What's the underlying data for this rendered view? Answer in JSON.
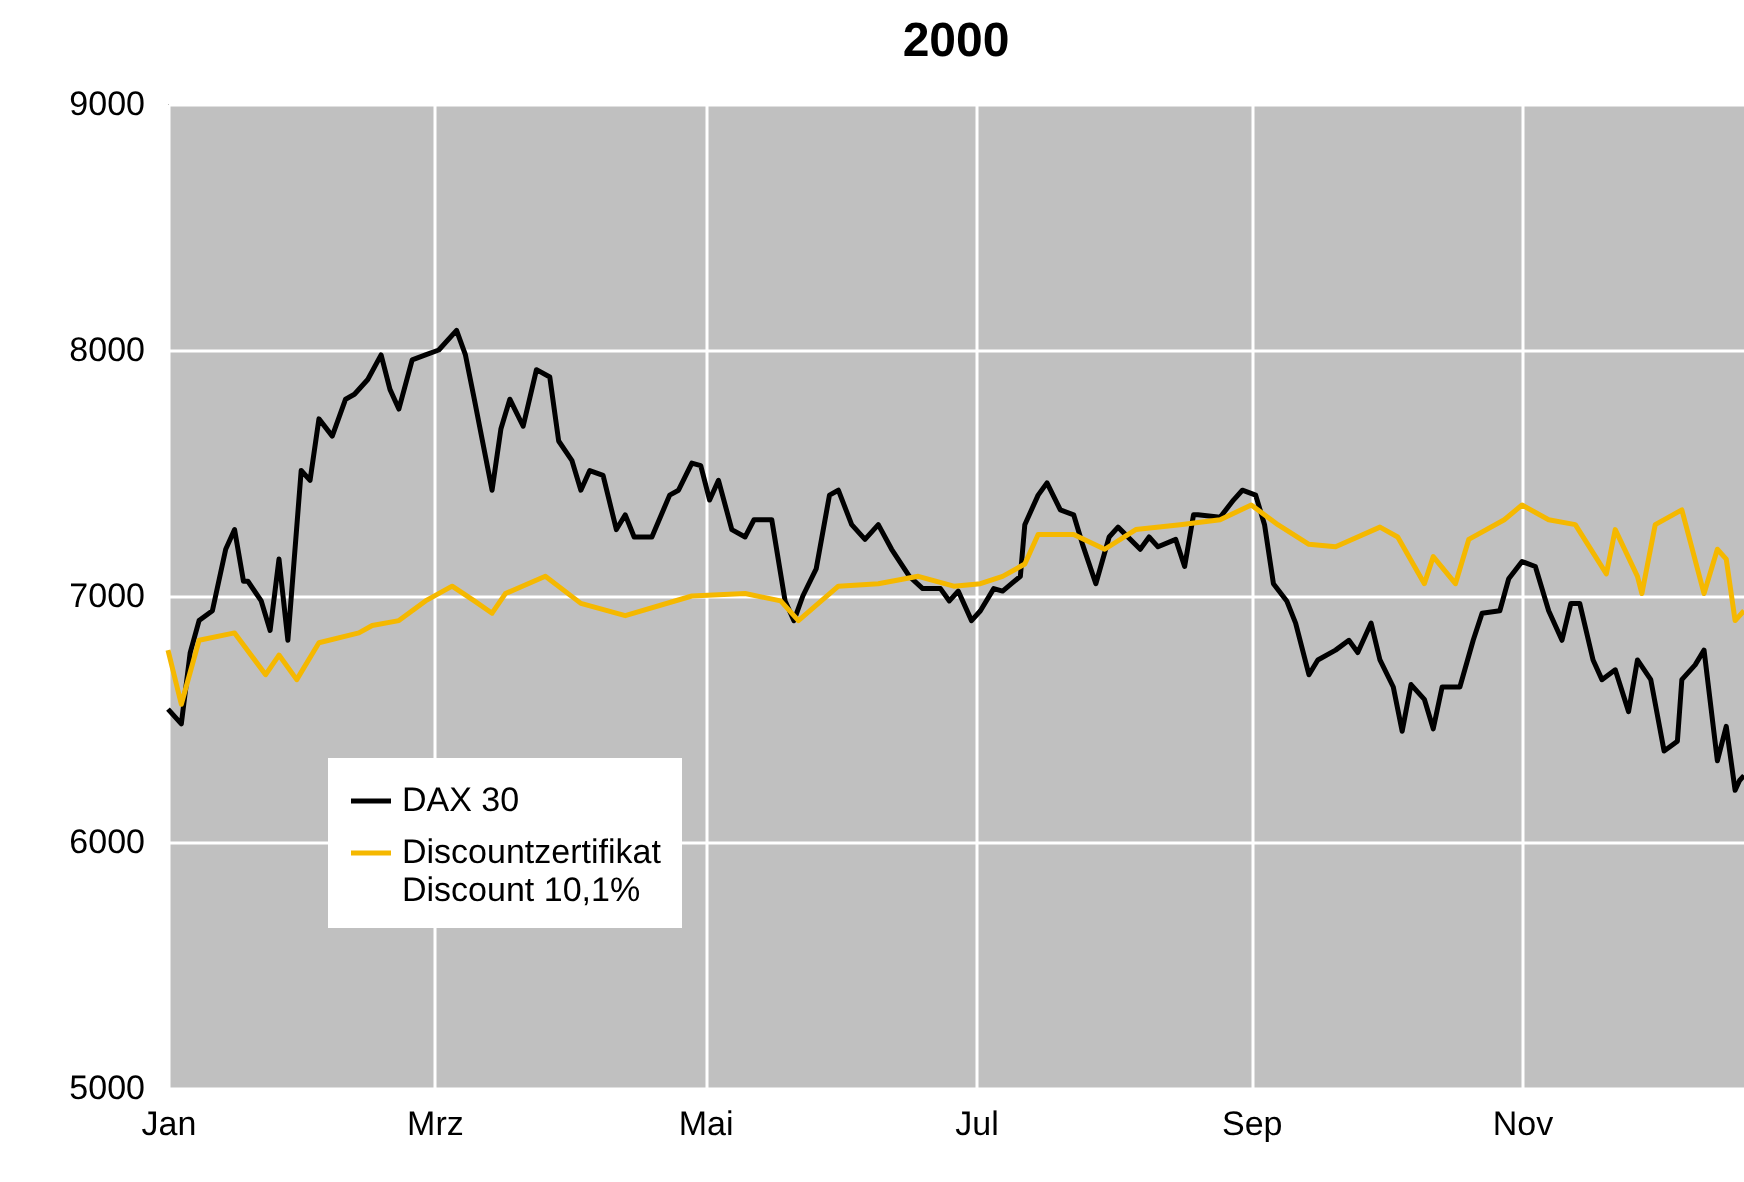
{
  "chart_data": {
    "type": "line",
    "title": "2000",
    "xlim": [
      "2000-01-01",
      "2000-12-21"
    ],
    "xticks": [
      {
        "value": "2000-01-01",
        "label": "Jan"
      },
      {
        "value": "2000-03-01",
        "label": "Mrz"
      },
      {
        "value": "2000-05-01",
        "label": "Mai"
      },
      {
        "value": "2000-07-01",
        "label": "Jul"
      },
      {
        "value": "2000-09-01",
        "label": "Sep"
      },
      {
        "value": "2000-11-01",
        "label": "Nov"
      }
    ],
    "ylim": [
      5000,
      9000
    ],
    "yticks": [
      5000,
      6000,
      7000,
      8000,
      9000
    ],
    "grid": true,
    "legend": "bottom left",
    "line_style": "solid",
    "marker": "none",
    "series": [
      {
        "name": "DAX 30",
        "color": "#000000",
        "x": [
          "2000-01-01",
          "2000-01-04",
          "2000-01-06",
          "2000-01-08",
          "2000-01-11",
          "2000-01-14",
          "2000-01-16",
          "2000-01-18",
          "2000-01-19",
          "2000-01-22",
          "2000-01-24",
          "2000-01-26",
          "2000-01-28",
          "2000-01-31",
          "2000-02-02",
          "2000-02-04",
          "2000-02-07",
          "2000-02-10",
          "2000-02-12",
          "2000-02-15",
          "2000-02-18",
          "2000-02-20",
          "2000-02-22",
          "2000-02-25",
          "2000-02-28",
          "2000-03-02",
          "2000-03-06",
          "2000-03-08",
          "2000-03-10",
          "2000-03-14",
          "2000-03-16",
          "2000-03-18",
          "2000-03-21",
          "2000-03-24",
          "2000-03-27",
          "2000-03-29",
          "2000-04-01",
          "2000-04-03",
          "2000-04-05",
          "2000-04-08",
          "2000-04-11",
          "2000-04-13",
          "2000-04-15",
          "2000-04-19",
          "2000-04-23",
          "2000-04-25",
          "2000-04-28",
          "2000-04-30",
          "2000-05-02",
          "2000-05-04",
          "2000-05-07",
          "2000-05-10",
          "2000-05-12",
          "2000-05-16",
          "2000-05-19",
          "2000-05-21",
          "2000-05-23",
          "2000-05-26",
          "2000-05-29",
          "2000-05-31",
          "2000-06-03",
          "2000-06-06",
          "2000-06-09",
          "2000-06-12",
          "2000-06-16",
          "2000-06-19",
          "2000-06-23",
          "2000-06-25",
          "2000-06-27",
          "2000-06-30",
          "2000-07-02",
          "2000-07-05",
          "2000-07-07",
          "2000-07-09",
          "2000-07-11",
          "2000-07-12",
          "2000-07-15",
          "2000-07-17",
          "2000-07-20",
          "2000-07-23",
          "2000-07-25",
          "2000-07-28",
          "2000-07-31",
          "2000-08-02",
          "2000-08-07",
          "2000-08-09",
          "2000-08-11",
          "2000-08-15",
          "2000-08-17",
          "2000-08-19",
          "2000-08-20",
          "2000-08-25",
          "2000-08-28",
          "2000-08-30",
          "2000-09-02",
          "2000-09-04",
          "2000-09-06",
          "2000-09-09",
          "2000-09-11",
          "2000-09-14",
          "2000-09-16",
          "2000-09-20",
          "2000-09-23",
          "2000-09-25",
          "2000-09-28",
          "2000-09-30",
          "2000-10-03",
          "2000-10-05",
          "2000-10-07",
          "2000-10-10",
          "2000-10-12",
          "2000-10-14",
          "2000-10-18",
          "2000-10-21",
          "2000-10-23",
          "2000-10-27",
          "2000-10-29",
          "2000-11-01",
          "2000-11-04",
          "2000-11-07",
          "2000-11-10",
          "2000-11-12",
          "2000-11-14",
          "2000-11-17",
          "2000-11-19",
          "2000-11-22",
          "2000-11-25",
          "2000-11-27",
          "2000-11-30",
          "2000-12-03",
          "2000-12-06",
          "2000-12-07",
          "2000-12-10",
          "2000-12-12",
          "2000-12-15",
          "2000-12-17",
          "2000-12-19",
          "2000-12-20",
          "2000-12-21"
        ],
        "values": [
          6540,
          6480,
          6770,
          6900,
          6940,
          7190,
          7270,
          7060,
          7060,
          6980,
          6860,
          7150,
          6820,
          7510,
          7470,
          7720,
          7650,
          7800,
          7820,
          7880,
          7980,
          7840,
          7760,
          7960,
          7980,
          8000,
          8080,
          7980,
          7800,
          7430,
          7680,
          7800,
          7690,
          7920,
          7890,
          7630,
          7550,
          7430,
          7510,
          7490,
          7270,
          7330,
          7240,
          7240,
          7410,
          7430,
          7540,
          7530,
          7390,
          7470,
          7270,
          7240,
          7310,
          7310,
          6980,
          6900,
          7000,
          7110,
          7410,
          7430,
          7290,
          7230,
          7290,
          7190,
          7080,
          7030,
          7030,
          6980,
          7020,
          6900,
          6940,
          7030,
          7020,
          7050,
          7080,
          7290,
          7410,
          7460,
          7350,
          7330,
          7210,
          7050,
          7240,
          7280,
          7190,
          7240,
          7200,
          7230,
          7120,
          7330,
          7330,
          7320,
          7390,
          7430,
          7410,
          7290,
          7050,
          6980,
          6890,
          6680,
          6740,
          6780,
          6820,
          6770,
          6890,
          6740,
          6630,
          6450,
          6640,
          6580,
          6460,
          6630,
          6630,
          6820,
          6930,
          6940,
          7070,
          7140,
          7120,
          6940,
          6820,
          6970,
          6970,
          6740,
          6660,
          6700,
          6530,
          6740,
          6660,
          6370,
          6410,
          6660,
          6720,
          6780,
          6330,
          6470,
          6210,
          6250,
          6270
        ]
      },
      {
        "name": "Discountzertifikat\nDiscount 10,1%",
        "color": "#f5b800",
        "x": [
          "2000-01-01",
          "2000-01-04",
          "2000-01-08",
          "2000-01-16",
          "2000-01-23",
          "2000-01-26",
          "2000-01-30",
          "2000-02-04",
          "2000-02-13",
          "2000-02-16",
          "2000-02-22",
          "2000-02-28",
          "2000-03-05",
          "2000-03-10",
          "2000-03-14",
          "2000-03-17",
          "2000-03-26",
          "2000-04-03",
          "2000-04-13",
          "2000-04-28",
          "2000-05-10",
          "2000-05-18",
          "2000-05-22",
          "2000-05-31",
          "2000-06-09",
          "2000-06-18",
          "2000-06-26",
          "2000-07-02",
          "2000-07-07",
          "2000-07-12",
          "2000-07-15",
          "2000-07-23",
          "2000-07-30",
          "2000-08-06",
          "2000-08-16",
          "2000-08-25",
          "2000-09-01",
          "2000-09-07",
          "2000-09-14",
          "2000-09-20",
          "2000-09-30",
          "2000-10-04",
          "2000-10-10",
          "2000-10-12",
          "2000-10-17",
          "2000-10-20",
          "2000-10-28",
          "2000-11-01",
          "2000-11-07",
          "2000-11-13",
          "2000-11-20",
          "2000-11-22",
          "2000-11-27",
          "2000-11-28",
          "2000-12-01",
          "2000-12-07",
          "2000-12-12",
          "2000-12-15",
          "2000-12-17",
          "2000-12-19",
          "2000-12-21"
        ],
        "values": [
          6780,
          6560,
          6820,
          6850,
          6680,
          6760,
          6660,
          6810,
          6850,
          6880,
          6900,
          6980,
          7040,
          6980,
          6930,
          7010,
          7080,
          6970,
          6920,
          7000,
          7010,
          6980,
          6900,
          7040,
          7050,
          7080,
          7040,
          7050,
          7080,
          7130,
          7250,
          7250,
          7190,
          7270,
          7290,
          7310,
          7370,
          7290,
          7210,
          7200,
          7280,
          7240,
          7050,
          7160,
          7050,
          7230,
          7310,
          7370,
          7310,
          7290,
          7090,
          7270,
          7080,
          7010,
          7290,
          7350,
          7010,
          7190,
          7150,
          6900,
          6940
        ]
      }
    ]
  }
}
